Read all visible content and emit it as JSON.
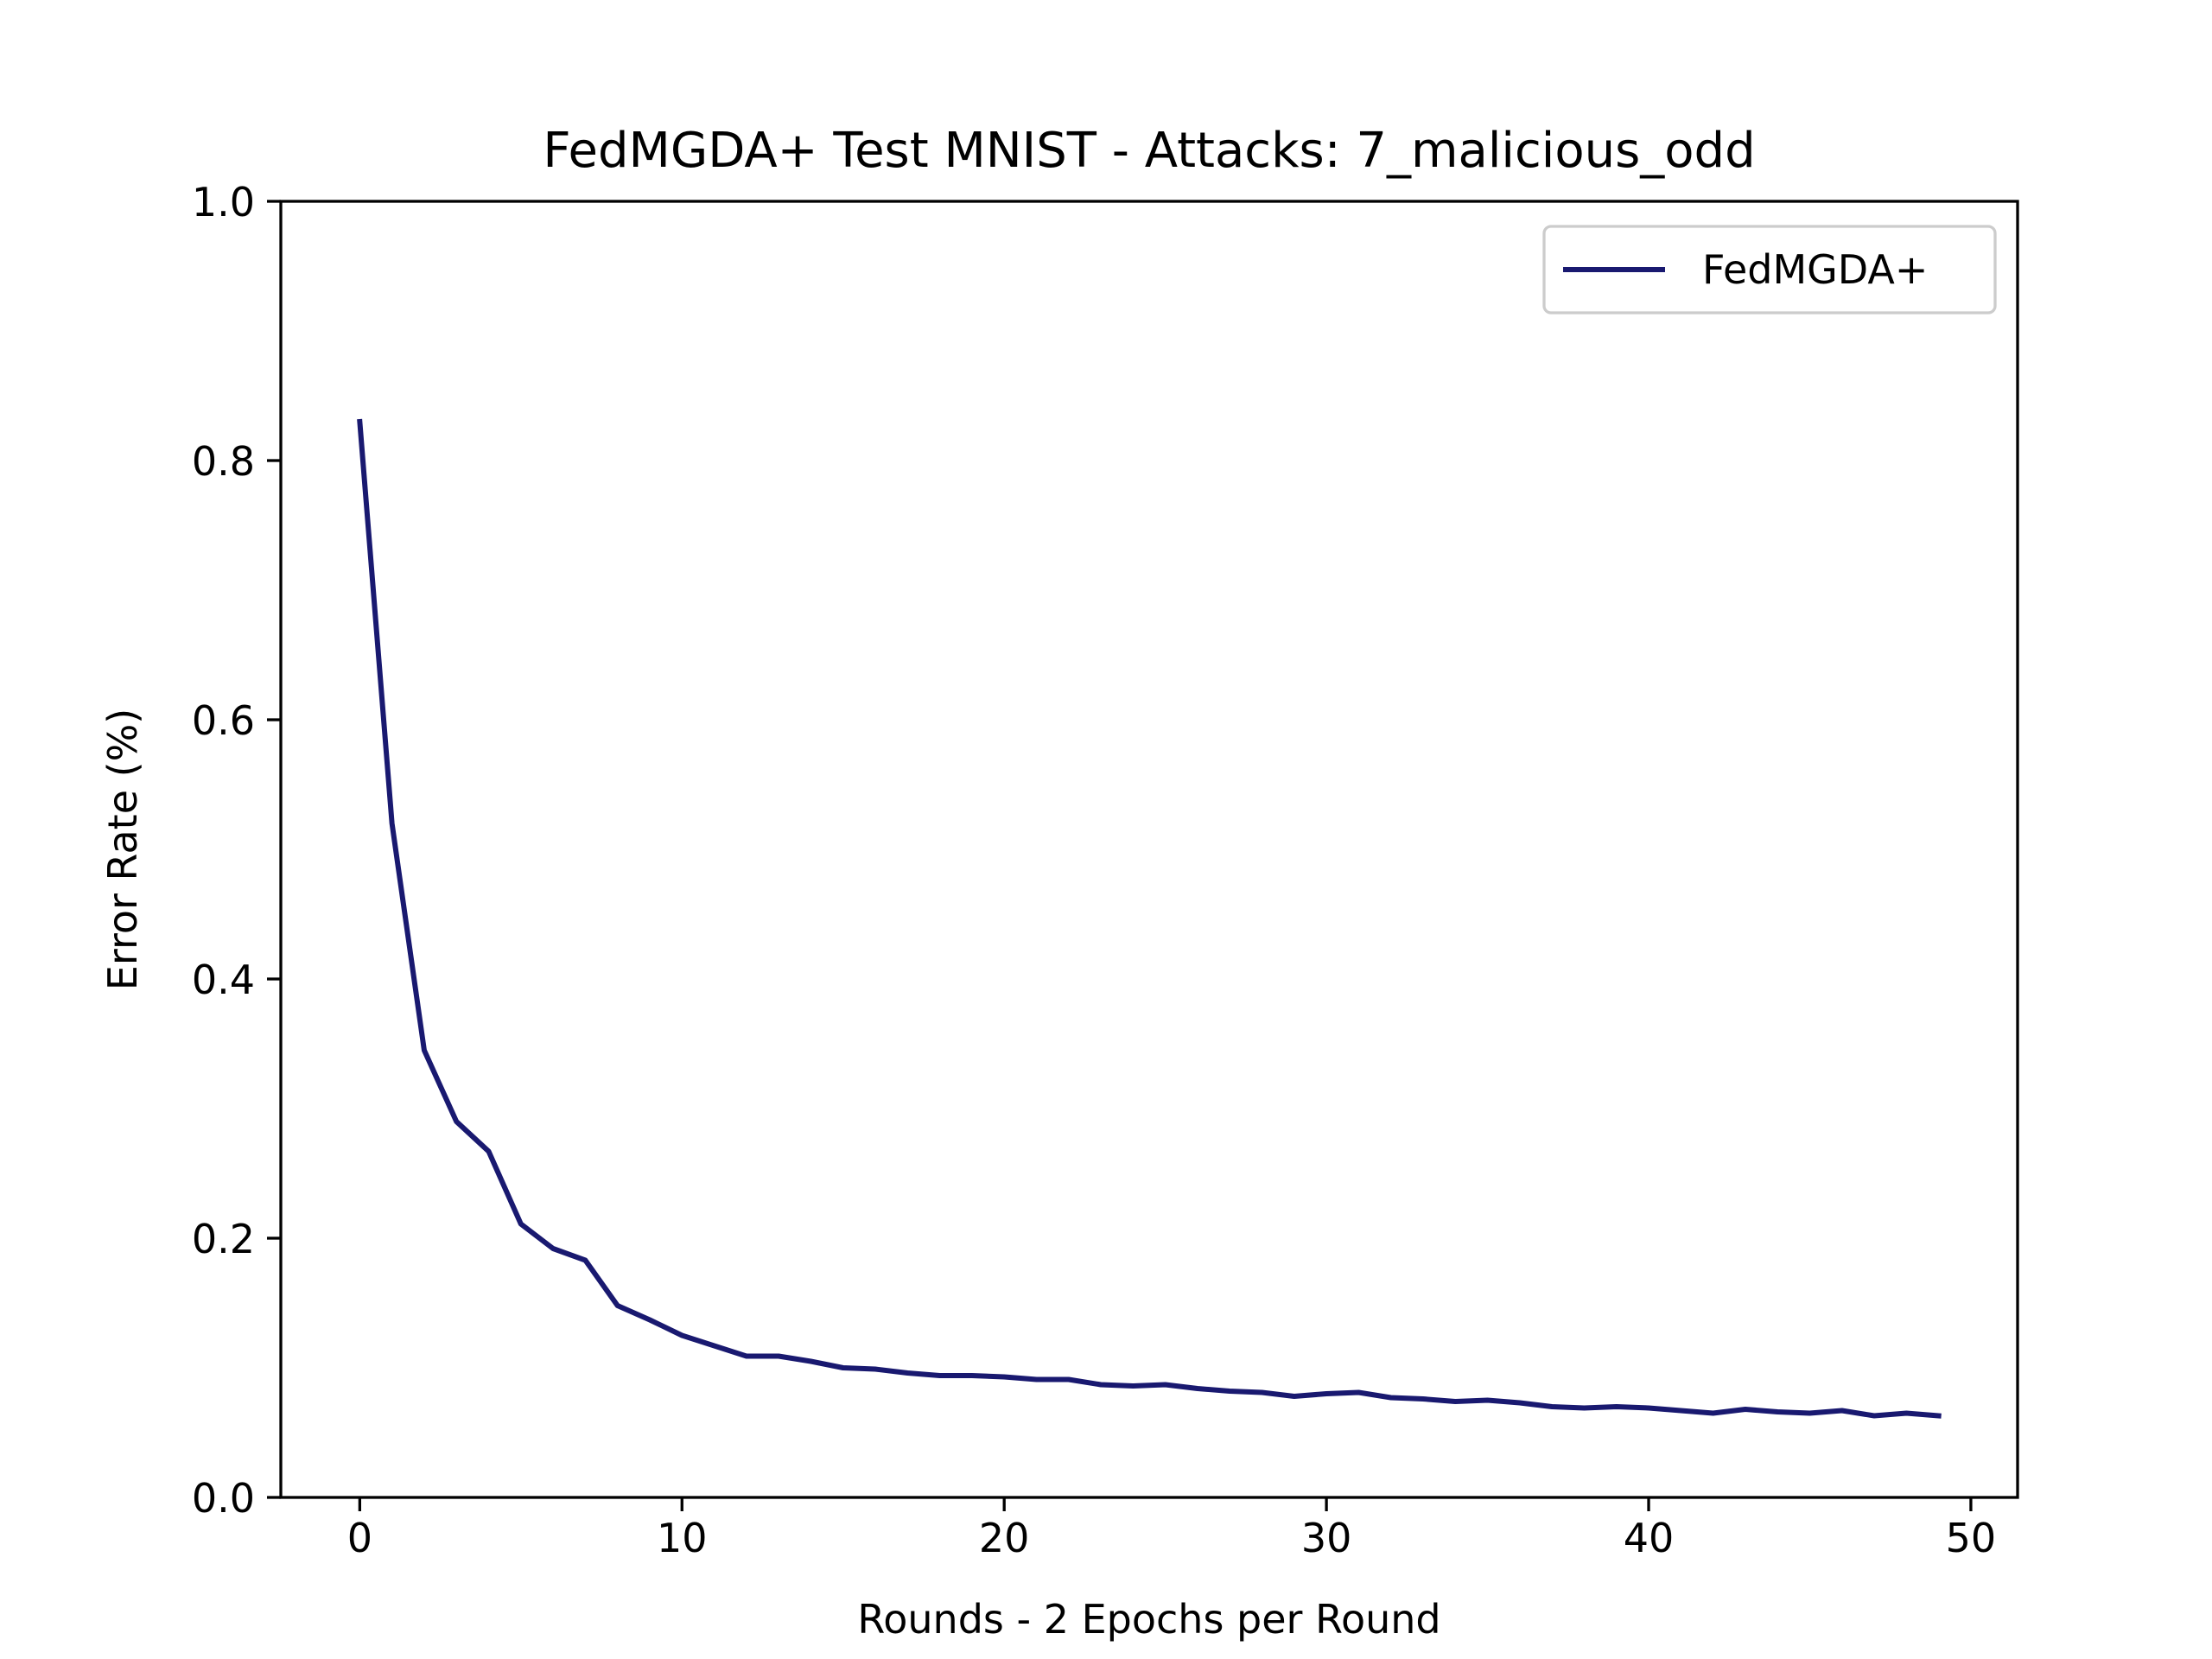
{
  "chart_data": {
    "type": "line",
    "title": "FedMGDA+ Test MNIST - Attacks: 7_malicious_odd",
    "xlabel": "Rounds - 2 Epochs per Round",
    "ylabel": "Error Rate (%)",
    "xlim": [
      -2.45,
      51.45
    ],
    "ylim": [
      0.0,
      1.0
    ],
    "x_ticks": [
      0,
      10,
      20,
      30,
      40,
      50
    ],
    "y_ticks": [
      0.0,
      0.2,
      0.4,
      0.6,
      0.8,
      1.0
    ],
    "x_tick_labels": [
      "0",
      "10",
      "20",
      "30",
      "40",
      "50"
    ],
    "y_tick_labels": [
      "0.0",
      "0.2",
      "0.4",
      "0.6",
      "0.8",
      "1.0"
    ],
    "grid": false,
    "legend_position": "top-right",
    "series": [
      {
        "name": "FedMGDA+",
        "color": "#191970",
        "x": [
          0,
          1,
          2,
          3,
          4,
          5,
          6,
          7,
          8,
          9,
          10,
          11,
          12,
          13,
          14,
          15,
          16,
          17,
          18,
          19,
          20,
          21,
          22,
          23,
          24,
          25,
          26,
          27,
          28,
          29,
          30,
          31,
          32,
          33,
          34,
          35,
          36,
          37,
          38,
          39,
          40,
          41,
          42,
          43,
          44,
          45,
          46,
          47,
          48,
          49
        ],
        "y": [
          0.83,
          0.52,
          0.345,
          0.29,
          0.267,
          0.211,
          0.192,
          0.183,
          0.148,
          0.137,
          0.125,
          0.117,
          0.109,
          0.109,
          0.105,
          0.1,
          0.099,
          0.096,
          0.094,
          0.094,
          0.093,
          0.091,
          0.091,
          0.087,
          0.086,
          0.087,
          0.084,
          0.082,
          0.081,
          0.078,
          0.08,
          0.081,
          0.077,
          0.076,
          0.074,
          0.075,
          0.073,
          0.07,
          0.069,
          0.07,
          0.069,
          0.067,
          0.065,
          0.068,
          0.066,
          0.065,
          0.067,
          0.063,
          0.065,
          0.063
        ]
      }
    ]
  }
}
